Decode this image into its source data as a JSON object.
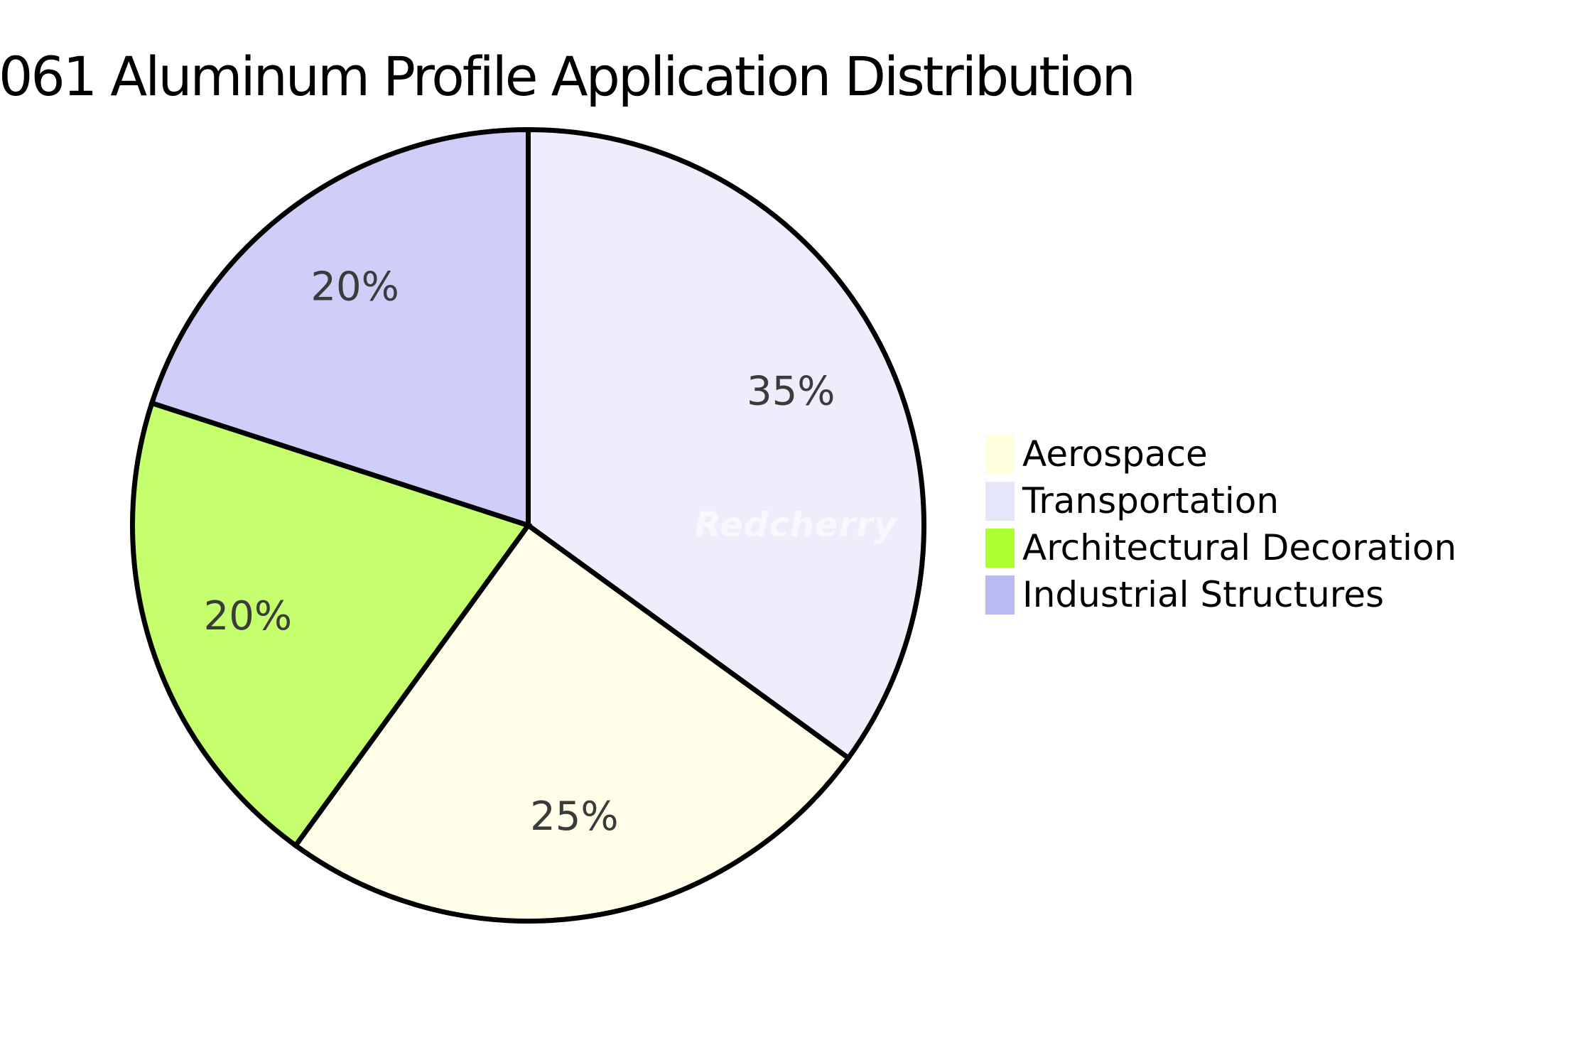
{
  "title": "061 Aluminum Profile Application Distribution",
  "watermark": "Redcherry",
  "chart_data": {
    "type": "pie",
    "title": "061 Aluminum Profile Application Distribution",
    "labels": [
      "Aerospace",
      "Transportation",
      "Architectural Decoration",
      "Industrial Structures"
    ],
    "values": [
      25,
      35,
      20,
      20
    ],
    "unit": "%",
    "slice_labels": [
      "25%",
      "35%",
      "20%",
      "20%"
    ],
    "colors": [
      "#FFFFE0",
      "#E6E6FA",
      "#ADFF2F",
      "#B9B9F5"
    ],
    "slice_fill_alpha": 0.7,
    "edge_color": "#000000",
    "slice_label_color": "#3b3b3b",
    "start_angle_deg": 90,
    "direction": "clockwise",
    "draw_order": [
      1,
      0,
      2,
      3
    ],
    "legend_position": "right",
    "grid": false
  }
}
